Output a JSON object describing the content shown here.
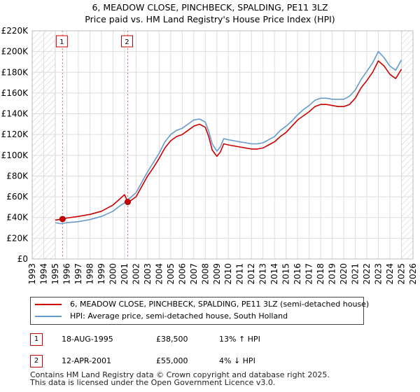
{
  "title_line1": "6, MEADOW CLOSE, PINCHBECK, SPALDING, PE11 3LZ",
  "title_line2": "Price paid vs. HM Land Registry's House Price Index (HPI)",
  "colors": {
    "property": "#cc0000",
    "hpi": "#6699cc",
    "hatch": "#cccccc",
    "grid": "#dddddd"
  },
  "chart_data": {
    "type": "line",
    "title": "6, MEADOW CLOSE, PINCHBECK, SPALDING, PE11 3LZ — Price paid vs. HM Land Registry's House Price Index (HPI)",
    "xlabel": "",
    "ylabel": "",
    "xlim": [
      1993,
      2026
    ],
    "ylim": [
      0,
      220000
    ],
    "grid": true,
    "x_ticks": [
      1993,
      1994,
      1995,
      1996,
      1997,
      1998,
      1999,
      2000,
      2001,
      2002,
      2003,
      2004,
      2005,
      2006,
      2007,
      2008,
      2009,
      2010,
      2011,
      2012,
      2013,
      2014,
      2015,
      2016,
      2017,
      2018,
      2019,
      2020,
      2021,
      2022,
      2023,
      2024,
      2025,
      2026
    ],
    "y_ticks": [
      {
        "value": 0,
        "label": "£0"
      },
      {
        "value": 20000,
        "label": "£20K"
      },
      {
        "value": 40000,
        "label": "£40K"
      },
      {
        "value": 60000,
        "label": "£60K"
      },
      {
        "value": 80000,
        "label": "£80K"
      },
      {
        "value": 100000,
        "label": "£100K"
      },
      {
        "value": 120000,
        "label": "£120K"
      },
      {
        "value": 140000,
        "label": "£140K"
      },
      {
        "value": 160000,
        "label": "£160K"
      },
      {
        "value": 180000,
        "label": "£180K"
      },
      {
        "value": 200000,
        "label": "£200K"
      },
      {
        "value": 220000,
        "label": "£220K"
      }
    ],
    "hatched_ranges": [
      [
        1993,
        1995
      ],
      [
        2025.0,
        2026
      ]
    ],
    "series": [
      {
        "name": "6, MEADOW CLOSE, PINCHBECK, SPALDING, PE11 3LZ (semi-detached house)",
        "color": "#cc0000",
        "x": [
          1995.0,
          1995.63,
          1996.0,
          1997.0,
          1998.0,
          1999.0,
          2000.0,
          2000.7,
          2001.0,
          2001.28,
          2001.5,
          2002.0,
          2002.5,
          2003.0,
          2003.5,
          2004.0,
          2004.5,
          2005.0,
          2005.5,
          2006.0,
          2006.5,
          2007.0,
          2007.5,
          2008.0,
          2008.3,
          2008.6,
          2009.0,
          2009.3,
          2009.6,
          2010.0,
          2010.5,
          2011.0,
          2011.5,
          2012.0,
          2012.5,
          2013.0,
          2013.5,
          2014.0,
          2014.5,
          2015.0,
          2015.5,
          2016.0,
          2016.5,
          2017.0,
          2017.5,
          2018.0,
          2018.5,
          2019.0,
          2019.5,
          2020.0,
          2020.5,
          2021.0,
          2021.5,
          2022.0,
          2022.5,
          2023.0,
          2023.5,
          2024.0,
          2024.5,
          2025.0
        ],
        "y": [
          37500,
          38500,
          39500,
          41000,
          43000,
          46000,
          52000,
          59000,
          62000,
          55000,
          56000,
          60000,
          70000,
          80000,
          88000,
          97000,
          107000,
          114000,
          118000,
          120000,
          124000,
          128000,
          130000,
          127000,
          118000,
          105000,
          99000,
          103000,
          111000,
          110000,
          109000,
          108000,
          107000,
          106000,
          106000,
          107000,
          110000,
          113000,
          118000,
          122000,
          128000,
          134000,
          138000,
          142000,
          147000,
          149000,
          149000,
          148000,
          147000,
          147000,
          149000,
          155000,
          165000,
          172000,
          180000,
          191000,
          186000,
          178000,
          174000,
          183000
        ]
      },
      {
        "name": "HPI: Average price, semi-detached house, South Holland",
        "color": "#6699cc",
        "x": [
          1995.0,
          1995.5,
          1996.0,
          1997.0,
          1998.0,
          1999.0,
          2000.0,
          2000.7,
          2001.0,
          2001.28,
          2001.5,
          2002.0,
          2002.5,
          2003.0,
          2003.5,
          2004.0,
          2004.5,
          2005.0,
          2005.5,
          2006.0,
          2006.5,
          2007.0,
          2007.5,
          2008.0,
          2008.3,
          2008.6,
          2009.0,
          2009.3,
          2009.6,
          2010.0,
          2010.5,
          2011.0,
          2011.5,
          2012.0,
          2012.5,
          2013.0,
          2013.5,
          2014.0,
          2014.5,
          2015.0,
          2015.5,
          2016.0,
          2016.5,
          2017.0,
          2017.5,
          2018.0,
          2018.5,
          2019.0,
          2019.5,
          2020.0,
          2020.5,
          2021.0,
          2021.5,
          2022.0,
          2022.5,
          2023.0,
          2023.5,
          2024.0,
          2024.5,
          2025.0
        ],
        "y": [
          35000,
          34000,
          35000,
          36000,
          38000,
          41000,
          46000,
          52000,
          54000,
          57500,
          59000,
          64000,
          74000,
          84000,
          93000,
          102000,
          113000,
          120000,
          124000,
          126000,
          130000,
          134000,
          135000,
          132000,
          123000,
          111000,
          104000,
          108000,
          116000,
          115000,
          114000,
          113000,
          112000,
          111000,
          111000,
          112000,
          115000,
          118000,
          124000,
          128000,
          133000,
          139000,
          144000,
          148000,
          153000,
          155000,
          155000,
          154000,
          154000,
          154000,
          157000,
          163000,
          173000,
          181000,
          189000,
          200000,
          194000,
          186000,
          182000,
          192000
        ]
      }
    ],
    "sales": [
      {
        "id": "1",
        "x": 1995.63,
        "price": 38500
      },
      {
        "id": "2",
        "x": 2001.28,
        "price": 55000
      }
    ]
  },
  "legend": {
    "property": "6, MEADOW CLOSE, PINCHBECK, SPALDING, PE11 3LZ (semi-detached house)",
    "hpi": "HPI: Average price, semi-detached house, South Holland"
  },
  "sales_table": [
    {
      "id": "1",
      "date": "18-AUG-1995",
      "price": "£38,500",
      "delta": "13% ↑ HPI"
    },
    {
      "id": "2",
      "date": "12-APR-2001",
      "price": "£55,000",
      "delta": "4% ↓ HPI"
    }
  ],
  "footer": {
    "line1": "Contains HM Land Registry data © Crown copyright and database right 2025.",
    "line2": "This data is licensed under the Open Government Licence v3.0."
  }
}
